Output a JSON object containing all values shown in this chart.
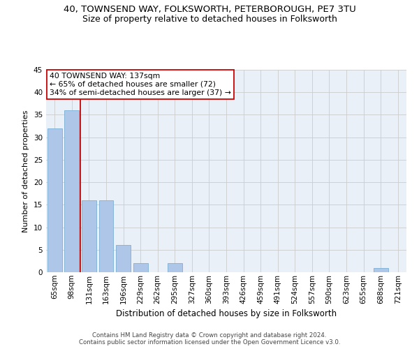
{
  "title": "40, TOWNSEND WAY, FOLKSWORTH, PETERBOROUGH, PE7 3TU",
  "subtitle": "Size of property relative to detached houses in Folksworth",
  "xlabel": "Distribution of detached houses by size in Folksworth",
  "ylabel": "Number of detached properties",
  "categories": [
    "65sqm",
    "98sqm",
    "131sqm",
    "163sqm",
    "196sqm",
    "229sqm",
    "262sqm",
    "295sqm",
    "327sqm",
    "360sqm",
    "393sqm",
    "426sqm",
    "459sqm",
    "491sqm",
    "524sqm",
    "557sqm",
    "590sqm",
    "623sqm",
    "655sqm",
    "688sqm",
    "721sqm"
  ],
  "values": [
    32,
    36,
    16,
    16,
    6,
    2,
    0,
    2,
    0,
    0,
    0,
    0,
    0,
    0,
    0,
    0,
    0,
    0,
    0,
    1,
    0
  ],
  "bar_color": "#aec6e8",
  "bar_edge_color": "#7aafd4",
  "highlight_line_color": "#cc0000",
  "annotation_line1": "40 TOWNSEND WAY: 137sqm",
  "annotation_line2": "← 65% of detached houses are smaller (72)",
  "annotation_line3": "34% of semi-detached houses are larger (37) →",
  "annotation_box_color": "#cc0000",
  "ylim": [
    0,
    45
  ],
  "yticks": [
    0,
    5,
    10,
    15,
    20,
    25,
    30,
    35,
    40,
    45
  ],
  "grid_color": "#cccccc",
  "bg_color": "#eaf0f8",
  "footer1": "Contains HM Land Registry data © Crown copyright and database right 2024.",
  "footer2": "Contains public sector information licensed under the Open Government Licence v3.0.",
  "title_fontsize": 9.5,
  "subtitle_fontsize": 9,
  "xlabel_fontsize": 8.5,
  "ylabel_fontsize": 8,
  "tick_fontsize": 7.5,
  "footer_fontsize": 6.2
}
